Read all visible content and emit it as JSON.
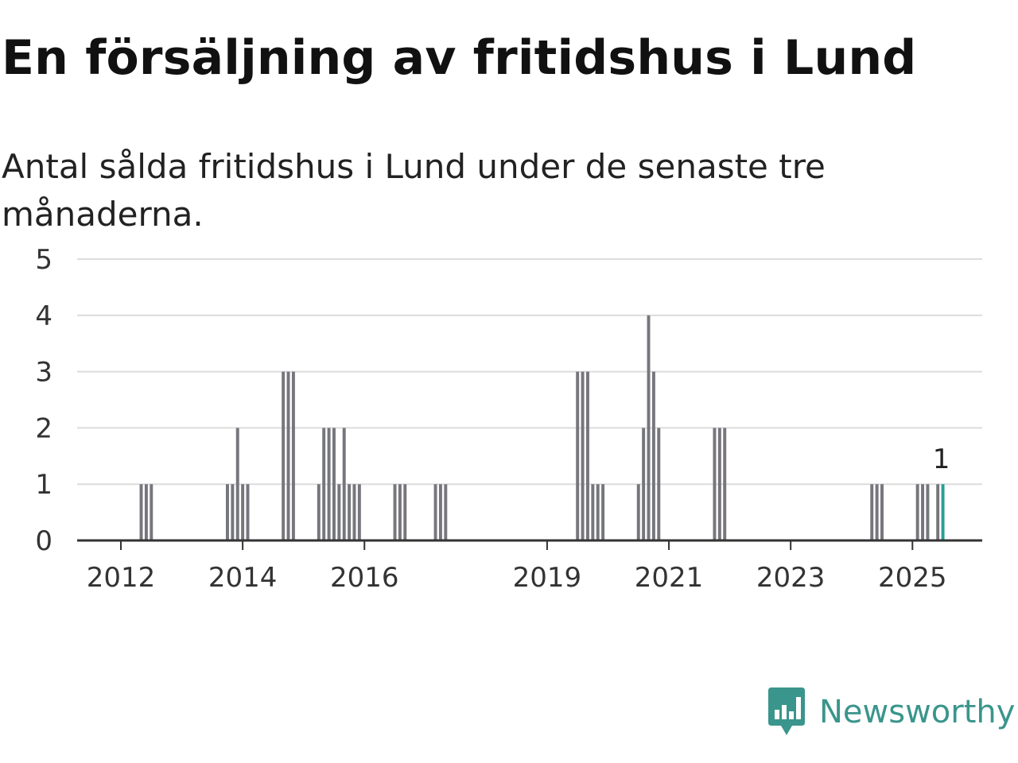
{
  "title": "En försäljning av fritidshus i Lund",
  "subtitle": "Antal sålda fritidshus i Lund under de senaste tre månaderna.",
  "brand": {
    "name": "Newsworthy",
    "icon": "newsworthy-logo-icon",
    "color": "#3a958c"
  },
  "chart_data": {
    "type": "bar",
    "title": "En försäljning av fritidshus i Lund",
    "subtitle": "Antal sålda fritidshus i Lund under de senaste tre månaderna.",
    "xlabel": "",
    "ylabel": "",
    "ylim": [
      0,
      5
    ],
    "yticks": [
      0,
      1,
      2,
      3,
      4,
      5
    ],
    "xticks": [
      2012,
      2014,
      2016,
      2019,
      2021,
      2023,
      2025
    ],
    "xlim": [
      "2011-06",
      "2026-06"
    ],
    "grid": true,
    "bar_color": "#76767d",
    "highlight_color": "#2a9d95",
    "annotation": {
      "date": "2025-07",
      "text": "1"
    },
    "points": [
      {
        "date": "2012-05",
        "value": 1
      },
      {
        "date": "2012-06",
        "value": 1
      },
      {
        "date": "2012-07",
        "value": 1
      },
      {
        "date": "2013-10",
        "value": 1
      },
      {
        "date": "2013-11",
        "value": 1
      },
      {
        "date": "2013-12",
        "value": 2
      },
      {
        "date": "2014-01",
        "value": 1
      },
      {
        "date": "2014-02",
        "value": 1
      },
      {
        "date": "2014-09",
        "value": 3
      },
      {
        "date": "2014-10",
        "value": 3
      },
      {
        "date": "2014-11",
        "value": 3
      },
      {
        "date": "2015-04",
        "value": 1
      },
      {
        "date": "2015-05",
        "value": 2
      },
      {
        "date": "2015-06",
        "value": 2
      },
      {
        "date": "2015-07",
        "value": 2
      },
      {
        "date": "2015-08",
        "value": 1
      },
      {
        "date": "2015-09",
        "value": 2
      },
      {
        "date": "2015-10",
        "value": 1
      },
      {
        "date": "2015-11",
        "value": 1
      },
      {
        "date": "2015-12",
        "value": 1
      },
      {
        "date": "2016-07",
        "value": 1
      },
      {
        "date": "2016-08",
        "value": 1
      },
      {
        "date": "2016-09",
        "value": 1
      },
      {
        "date": "2017-03",
        "value": 1
      },
      {
        "date": "2017-04",
        "value": 1
      },
      {
        "date": "2017-05",
        "value": 1
      },
      {
        "date": "2019-07",
        "value": 3
      },
      {
        "date": "2019-08",
        "value": 3
      },
      {
        "date": "2019-09",
        "value": 3
      },
      {
        "date": "2019-10",
        "value": 1
      },
      {
        "date": "2019-11",
        "value": 1
      },
      {
        "date": "2019-12",
        "value": 1
      },
      {
        "date": "2020-07",
        "value": 1
      },
      {
        "date": "2020-08",
        "value": 2
      },
      {
        "date": "2020-09",
        "value": 4
      },
      {
        "date": "2020-10",
        "value": 3
      },
      {
        "date": "2020-11",
        "value": 2
      },
      {
        "date": "2021-10",
        "value": 2
      },
      {
        "date": "2021-11",
        "value": 2
      },
      {
        "date": "2021-12",
        "value": 2
      },
      {
        "date": "2024-05",
        "value": 1
      },
      {
        "date": "2024-06",
        "value": 1
      },
      {
        "date": "2024-07",
        "value": 1
      },
      {
        "date": "2025-02",
        "value": 1
      },
      {
        "date": "2025-03",
        "value": 1
      },
      {
        "date": "2025-04",
        "value": 1
      },
      {
        "date": "2025-06",
        "value": 1
      },
      {
        "date": "2025-07",
        "value": 1,
        "highlight": true
      }
    ]
  }
}
